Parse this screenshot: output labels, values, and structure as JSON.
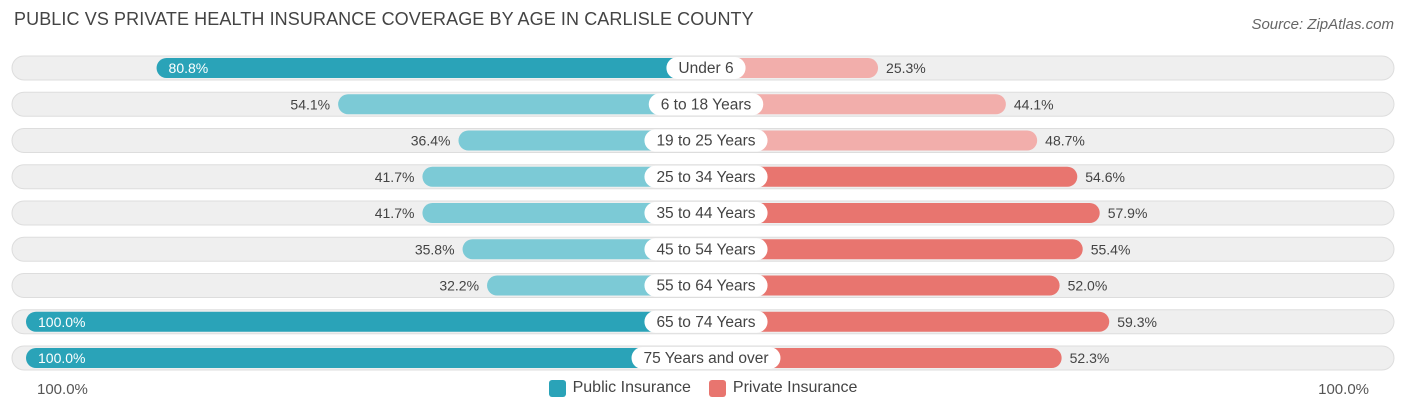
{
  "header": {
    "title": "PUBLIC VS PRIVATE HEALTH INSURANCE COVERAGE BY AGE IN CARLISLE COUNTY",
    "source": "Source: ZipAtlas.com"
  },
  "axis": {
    "left_label": "100.0%",
    "right_label": "100.0%"
  },
  "legend": {
    "public_label": "Public Insurance",
    "private_label": "Private Insurance"
  },
  "colors": {
    "public_dark": "#2aa3b8",
    "public_light": "#7ccad6",
    "private_dark": "#e8756f",
    "private_light": "#f2aeab",
    "track": "#efefef",
    "track_border": "#dddddd"
  },
  "chart_data": {
    "type": "bar",
    "orientation": "diverging-horizontal",
    "title": "PUBLIC VS PRIVATE HEALTH INSURANCE COVERAGE BY AGE IN CARLISLE COUNTY",
    "categories": [
      "Under 6",
      "6 to 18 Years",
      "19 to 25 Years",
      "25 to 34 Years",
      "35 to 44 Years",
      "45 to 54 Years",
      "55 to 64 Years",
      "65 to 74 Years",
      "75 Years and over"
    ],
    "series": [
      {
        "name": "Public Insurance",
        "values": [
          80.8,
          54.1,
          36.4,
          41.7,
          41.7,
          35.8,
          32.2,
          100.0,
          100.0
        ],
        "labels": [
          "80.8%",
          "54.1%",
          "36.4%",
          "41.7%",
          "41.7%",
          "35.8%",
          "32.2%",
          "100.0%",
          "100.0%"
        ]
      },
      {
        "name": "Private Insurance",
        "values": [
          25.3,
          44.1,
          48.7,
          54.6,
          57.9,
          55.4,
          52.0,
          59.3,
          52.3
        ],
        "labels": [
          "25.3%",
          "44.1%",
          "48.7%",
          "54.6%",
          "57.9%",
          "55.4%",
          "52.0%",
          "59.3%",
          "52.3%"
        ]
      }
    ],
    "xlim": [
      -100,
      100
    ],
    "legend_position": "bottom-center"
  }
}
